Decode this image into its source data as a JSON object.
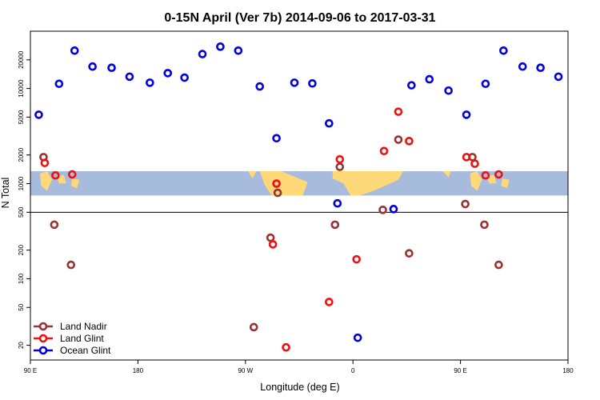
{
  "chart_data": {
    "type": "scatter",
    "title": "0-15N April (Ver 7b)   2014-09-06 to 2017-03-31",
    "xlabel": "Longitude (deg E)",
    "ylabel": "N Total",
    "x_scale": "linear",
    "y_scale": "log",
    "xlim": [
      90,
      540
    ],
    "ylim": [
      14,
      40000
    ],
    "x_ticks": [
      {
        "value": 90,
        "label": "90 E"
      },
      {
        "value": 180,
        "label": "180"
      },
      {
        "value": 270,
        "label": "90 W"
      },
      {
        "value": 360,
        "label": "0"
      },
      {
        "value": 450,
        "label": "90 E"
      },
      {
        "value": 540,
        "label": "180"
      }
    ],
    "y_ticks": [
      {
        "value": 20,
        "label": "20"
      },
      {
        "value": 50,
        "label": "50"
      },
      {
        "value": 100,
        "label": "100"
      },
      {
        "value": 200,
        "label": "200"
      },
      {
        "value": 500,
        "label": "500"
      },
      {
        "value": 1000,
        "label": "1000"
      },
      {
        "value": 2000,
        "label": "2000"
      },
      {
        "value": 5000,
        "label": "5000"
      },
      {
        "value": 10000,
        "label": "10000"
      },
      {
        "value": 20000,
        "label": "20000"
      }
    ],
    "reference_line": {
      "y": 500,
      "color": "#000000"
    },
    "map_band": {
      "y_range": [
        750,
        1350
      ],
      "ocean_color": "#a7bcdc",
      "land_color": "#ffd878"
    },
    "grid": false,
    "legend_position": "bottom-left",
    "series": [
      {
        "name": "Land Nadir",
        "color": "#993333",
        "points": [
          {
            "x": 101,
            "y": 1900
          },
          {
            "x": 110,
            "y": 370
          },
          {
            "x": 124,
            "y": 140
          },
          {
            "x": 277,
            "y": 31
          },
          {
            "x": 291,
            "y": 270
          },
          {
            "x": 297,
            "y": 800
          },
          {
            "x": 345,
            "y": 370
          },
          {
            "x": 349,
            "y": 1500
          },
          {
            "x": 385,
            "y": 530
          },
          {
            "x": 398,
            "y": 2900
          },
          {
            "x": 407,
            "y": 185
          },
          {
            "x": 454,
            "y": 610
          },
          {
            "x": 460,
            "y": 1900
          },
          {
            "x": 470,
            "y": 370
          },
          {
            "x": 482,
            "y": 140
          }
        ]
      },
      {
        "name": "Land Glint",
        "color": "#ee1111",
        "points": [
          {
            "x": 102,
            "y": 1650
          },
          {
            "x": 111,
            "y": 1220
          },
          {
            "x": 125,
            "y": 1250
          },
          {
            "x": 296,
            "y": 1000
          },
          {
            "x": 293,
            "y": 230
          },
          {
            "x": 304,
            "y": 19
          },
          {
            "x": 340,
            "y": 57
          },
          {
            "x": 349,
            "y": 1800
          },
          {
            "x": 363,
            "y": 160
          },
          {
            "x": 386,
            "y": 2200
          },
          {
            "x": 398,
            "y": 5700
          },
          {
            "x": 407,
            "y": 2800
          },
          {
            "x": 455,
            "y": 1900
          },
          {
            "x": 462,
            "y": 1620
          },
          {
            "x": 471,
            "y": 1220
          },
          {
            "x": 482,
            "y": 1250
          }
        ]
      },
      {
        "name": "Ocean Glint",
        "color": "#0000dd",
        "points": [
          {
            "x": 97,
            "y": 5300
          },
          {
            "x": 114,
            "y": 11200
          },
          {
            "x": 127,
            "y": 25000
          },
          {
            "x": 142,
            "y": 17000
          },
          {
            "x": 158,
            "y": 16500
          },
          {
            "x": 173,
            "y": 13300
          },
          {
            "x": 190,
            "y": 11500
          },
          {
            "x": 205,
            "y": 14500
          },
          {
            "x": 219,
            "y": 13000
          },
          {
            "x": 234,
            "y": 23000
          },
          {
            "x": 249,
            "y": 27500
          },
          {
            "x": 264,
            "y": 25000
          },
          {
            "x": 282,
            "y": 10500
          },
          {
            "x": 296,
            "y": 3000
          },
          {
            "x": 311,
            "y": 11500
          },
          {
            "x": 326,
            "y": 11300
          },
          {
            "x": 340,
            "y": 4300
          },
          {
            "x": 347,
            "y": 620
          },
          {
            "x": 364,
            "y": 24
          },
          {
            "x": 394,
            "y": 540
          },
          {
            "x": 409,
            "y": 10800
          },
          {
            "x": 424,
            "y": 12500
          },
          {
            "x": 440,
            "y": 9500
          },
          {
            "x": 455,
            "y": 5300
          },
          {
            "x": 471,
            "y": 11200
          },
          {
            "x": 486,
            "y": 25000
          },
          {
            "x": 502,
            "y": 17000
          },
          {
            "x": 517,
            "y": 16500
          },
          {
            "x": 532,
            "y": 13300
          }
        ]
      }
    ]
  }
}
